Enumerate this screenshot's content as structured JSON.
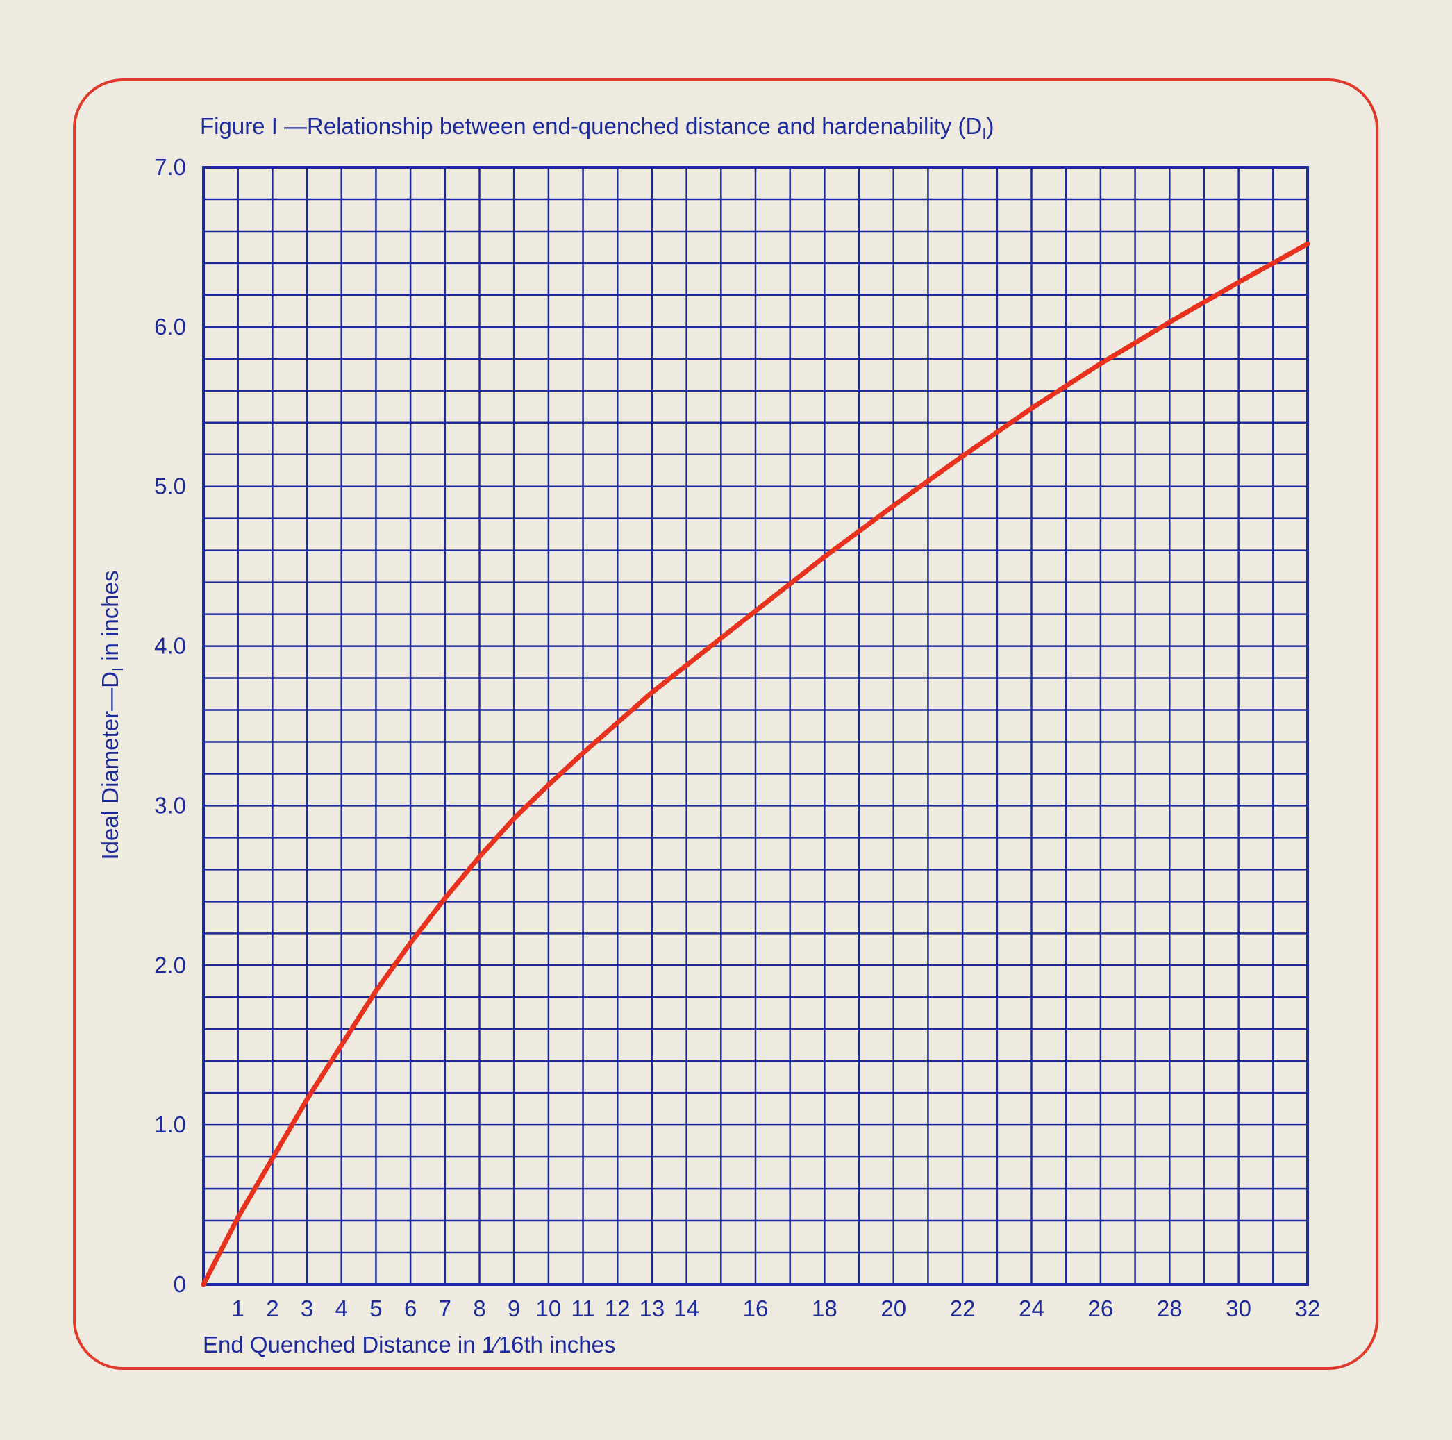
{
  "chart_data": {
    "type": "line",
    "title": "Figure I —Relationship between end-quenched distance and hardenability (D",
    "title_subscript": "I",
    "title_suffix": ")",
    "xlabel": "End Quenched Distance in",
    "xlabel_fraction": "1⁄16",
    "xlabel_suffix": "th inches",
    "ylabel": "Ideal Diameter—D",
    "ylabel_subscript": "I",
    "ylabel_suffix": " in inches",
    "xlim": [
      0,
      32
    ],
    "ylim": [
      0,
      7.0
    ],
    "grid": true,
    "x_ticks": [
      {
        "v": 1,
        "label": "1"
      },
      {
        "v": 2,
        "label": "2"
      },
      {
        "v": 3,
        "label": "3"
      },
      {
        "v": 4,
        "label": "4"
      },
      {
        "v": 5,
        "label": "5"
      },
      {
        "v": 6,
        "label": "6"
      },
      {
        "v": 7,
        "label": "7"
      },
      {
        "v": 8,
        "label": "8"
      },
      {
        "v": 9,
        "label": "9"
      },
      {
        "v": 10,
        "label": "10"
      },
      {
        "v": 11,
        "label": "11"
      },
      {
        "v": 12,
        "label": "12"
      },
      {
        "v": 13,
        "label": "13"
      },
      {
        "v": 14,
        "label": "14"
      },
      {
        "v": 16,
        "label": "16"
      },
      {
        "v": 18,
        "label": "18"
      },
      {
        "v": 20,
        "label": "20"
      },
      {
        "v": 22,
        "label": "22"
      },
      {
        "v": 24,
        "label": "24"
      },
      {
        "v": 26,
        "label": "26"
      },
      {
        "v": 28,
        "label": "28"
      },
      {
        "v": 30,
        "label": "30"
      },
      {
        "v": 32,
        "label": "32"
      }
    ],
    "y_ticks": [
      {
        "v": 0,
        "label": "0"
      },
      {
        "v": 1,
        "label": "1.0"
      },
      {
        "v": 2,
        "label": "2.0"
      },
      {
        "v": 3,
        "label": "3.0"
      },
      {
        "v": 4,
        "label": "4.0"
      },
      {
        "v": 5,
        "label": "5.0"
      },
      {
        "v": 6,
        "label": "6.0"
      },
      {
        "v": 7,
        "label": "7.0"
      }
    ],
    "x_gridlines": [
      1,
      2,
      3,
      4,
      5,
      6,
      7,
      8,
      9,
      10,
      11,
      12,
      13,
      14,
      15,
      16,
      17,
      18,
      19,
      20,
      21,
      22,
      23,
      24,
      25,
      26,
      27,
      28,
      29,
      30,
      31
    ],
    "y_gridlines": [
      0.2,
      0.4,
      0.6,
      0.8,
      1.0,
      1.2,
      1.4,
      1.6,
      1.8,
      2.0,
      2.2,
      2.4,
      2.6,
      2.8,
      3.0,
      3.2,
      3.4,
      3.6,
      3.8,
      4.0,
      4.2,
      4.4,
      4.6,
      4.8,
      5.0,
      5.2,
      5.4,
      5.6,
      5.8,
      6.0,
      6.2,
      6.4,
      6.6,
      6.8
    ],
    "series": [
      {
        "color": "#e8321e",
        "x": [
          0,
          1,
          2,
          3,
          4,
          5,
          6,
          7,
          8,
          9,
          10,
          11,
          12,
          13,
          14,
          16,
          18,
          20,
          22,
          24,
          26,
          28,
          30,
          32
        ],
        "y": [
          0,
          0.42,
          0.79,
          1.16,
          1.5,
          1.84,
          2.14,
          2.42,
          2.68,
          2.92,
          3.13,
          3.33,
          3.52,
          3.71,
          3.88,
          4.22,
          4.56,
          4.88,
          5.19,
          5.49,
          5.77,
          6.03,
          6.28,
          6.52
        ]
      }
    ],
    "colors": {
      "grid": "#1c2a9e",
      "text": "#1c2a9e",
      "frame": "#e03a2a",
      "background": "#efebe0"
    }
  }
}
